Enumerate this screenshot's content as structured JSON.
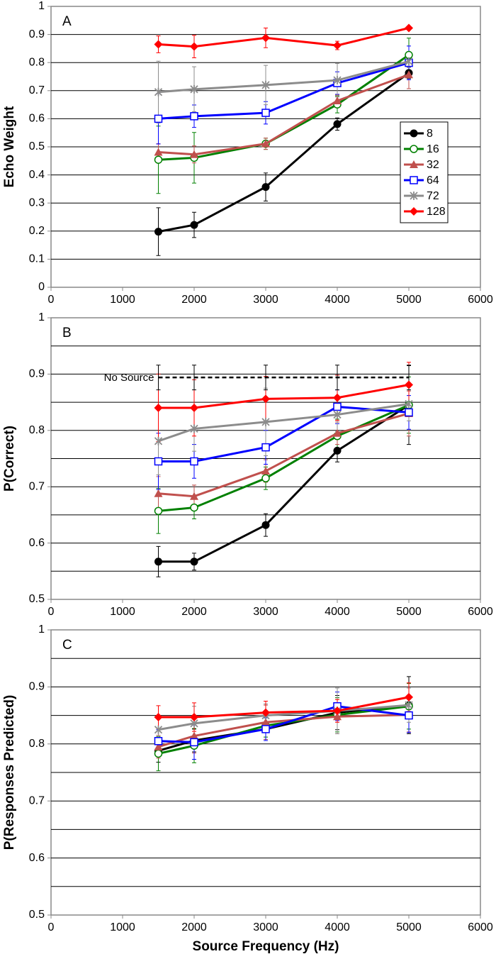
{
  "chart_data": [
    {
      "type": "line",
      "title": "A",
      "ylabel": "Echo Weight",
      "x": [
        1500,
        2000,
        3000,
        4000,
        5000
      ],
      "xlim": [
        0,
        6000
      ],
      "xticks": [
        0,
        1000,
        2000,
        3000,
        4000,
        5000,
        6000
      ],
      "ylim": [
        0,
        1
      ],
      "yticks": [
        0,
        0.1,
        0.2,
        0.3,
        0.4,
        0.5,
        0.6,
        0.7,
        0.8,
        0.9,
        1
      ],
      "grid": true,
      "legend": "right",
      "series": [
        {
          "name": "8",
          "color": "#000000",
          "marker": "circle",
          "values": [
            0.198,
            0.222,
            0.357,
            0.581,
            0.763
          ],
          "errors": [
            0.085,
            0.045,
            0.05,
            0.022,
            0.02
          ]
        },
        {
          "name": "16",
          "color": "#008000",
          "marker": "open-circle",
          "values": [
            0.454,
            0.461,
            0.511,
            0.651,
            0.827
          ],
          "errors": [
            0.12,
            0.09,
            0.02,
            0.03,
            0.06
          ]
        },
        {
          "name": "32",
          "color": "#c0504d",
          "marker": "triangle",
          "values": [
            0.481,
            0.473,
            0.511,
            0.664,
            0.757
          ],
          "errors": [
            0.03,
            0.03,
            0.02,
            0.02,
            0.05
          ]
        },
        {
          "name": "64",
          "color": "#0000ff",
          "marker": "open-square",
          "values": [
            0.6,
            0.609,
            0.621,
            0.727,
            0.799
          ],
          "errors": [
            0.09,
            0.04,
            0.04,
            0.04,
            0.06
          ]
        },
        {
          "name": "72",
          "color": "#8c8c8c",
          "marker": "star",
          "values": [
            0.695,
            0.705,
            0.72,
            0.737,
            0.804
          ],
          "errors": [
            0.11,
            0.08,
            0.07,
            0.06,
            0.02
          ]
        },
        {
          "name": "128",
          "color": "#ff0000",
          "marker": "diamond",
          "values": [
            0.865,
            0.857,
            0.888,
            0.861,
            0.923
          ],
          "errors": [
            0.03,
            0.04,
            0.035,
            0.015,
            0.005
          ]
        }
      ]
    },
    {
      "type": "line",
      "title": "B",
      "ylabel": "P(Correct)",
      "x": [
        1500,
        2000,
        3000,
        4000,
        5000
      ],
      "xlim": [
        0,
        6000
      ],
      "xticks": [
        0,
        1000,
        2000,
        3000,
        4000,
        5000,
        6000
      ],
      "ylim": [
        0.5,
        1
      ],
      "yticks": [
        0.5,
        0.6,
        0.7,
        0.8,
        0.9,
        1
      ],
      "grid": true,
      "minor_grid": [
        0.55,
        0.65,
        0.75,
        0.85,
        0.95
      ],
      "series": [
        {
          "color": "#000000",
          "marker": "circle",
          "values": [
            0.567,
            0.567,
            0.632,
            0.764,
            0.845
          ],
          "errors": [
            0.027,
            0.015,
            0.02,
            0.02,
            0.07
          ]
        },
        {
          "color": "#008000",
          "marker": "open-circle",
          "values": [
            0.657,
            0.663,
            0.715,
            0.79,
            0.845
          ],
          "errors": [
            0.04,
            0.02,
            0.02,
            0.03,
            0.05
          ]
        },
        {
          "color": "#c0504d",
          "marker": "triangle",
          "values": [
            0.688,
            0.683,
            0.728,
            0.795,
            0.83
          ],
          "errors": [
            0.03,
            0.02,
            0.02,
            0.02,
            0.04
          ]
        },
        {
          "color": "#0000ff",
          "marker": "open-square",
          "values": [
            0.745,
            0.745,
            0.77,
            0.842,
            0.832
          ],
          "errors": [
            0.05,
            0.03,
            0.03,
            0.03,
            0.03
          ]
        },
        {
          "color": "#8c8c8c",
          "marker": "star",
          "values": [
            0.781,
            0.803,
            0.815,
            0.828,
            0.847
          ],
          "errors": [
            0.06,
            0.04,
            0.06,
            0.03,
            0.03
          ]
        },
        {
          "color": "#ff0000",
          "marker": "diamond",
          "values": [
            0.84,
            0.84,
            0.856,
            0.858,
            0.881
          ],
          "errors": [
            0.06,
            0.05,
            0.04,
            0.04,
            0.04
          ]
        },
        {
          "name": "No Source",
          "color": "#000000",
          "dashed": true,
          "values": [
            0.894,
            0.894,
            0.894,
            0.894,
            0.894
          ],
          "errors": [
            0.022,
            0.022,
            0.022,
            0.022,
            0.022
          ]
        }
      ]
    },
    {
      "type": "line",
      "title": "C",
      "ylabel": "P(Responses Predicted)",
      "xlabel": "Source Frequency (Hz)",
      "x": [
        1500,
        2000,
        3000,
        4000,
        5000
      ],
      "xlim": [
        0,
        6000
      ],
      "xticks": [
        0,
        1000,
        2000,
        3000,
        4000,
        5000,
        6000
      ],
      "ylim": [
        0.5,
        1
      ],
      "yticks": [
        0.5,
        0.6,
        0.7,
        0.8,
        0.9,
        1
      ],
      "grid": true,
      "minor_grid": [
        0.55,
        0.65,
        0.75,
        0.85,
        0.95
      ],
      "series": [
        {
          "color": "#000000",
          "marker": "circle",
          "values": [
            0.788,
            0.806,
            0.826,
            0.855,
            0.868
          ],
          "errors": [
            0.02,
            0.02,
            0.02,
            0.03,
            0.05
          ]
        },
        {
          "color": "#008000",
          "marker": "open-circle",
          "values": [
            0.783,
            0.797,
            0.832,
            0.851,
            0.866
          ],
          "errors": [
            0.03,
            0.03,
            0.02,
            0.03,
            0.04
          ]
        },
        {
          "color": "#c0504d",
          "marker": "triangle",
          "values": [
            0.795,
            0.814,
            0.838,
            0.848,
            0.851
          ],
          "errors": [
            0.02,
            0.03,
            0.03,
            0.03,
            0.03
          ]
        },
        {
          "color": "#0000ff",
          "marker": "open-square",
          "values": [
            0.805,
            0.803,
            0.826,
            0.866,
            0.85
          ],
          "errors": [
            0.02,
            0.03,
            0.02,
            0.025,
            0.03
          ]
        },
        {
          "color": "#8c8c8c",
          "marker": "star",
          "values": [
            0.825,
            0.836,
            0.85,
            0.858,
            0.868
          ],
          "errors": [
            0.02,
            0.03,
            0.02,
            0.04,
            0.03
          ]
        },
        {
          "color": "#ff0000",
          "marker": "diamond",
          "values": [
            0.847,
            0.847,
            0.855,
            0.858,
            0.882
          ],
          "errors": [
            0.02,
            0.025,
            0.02,
            0.02,
            0.025
          ]
        }
      ]
    }
  ]
}
